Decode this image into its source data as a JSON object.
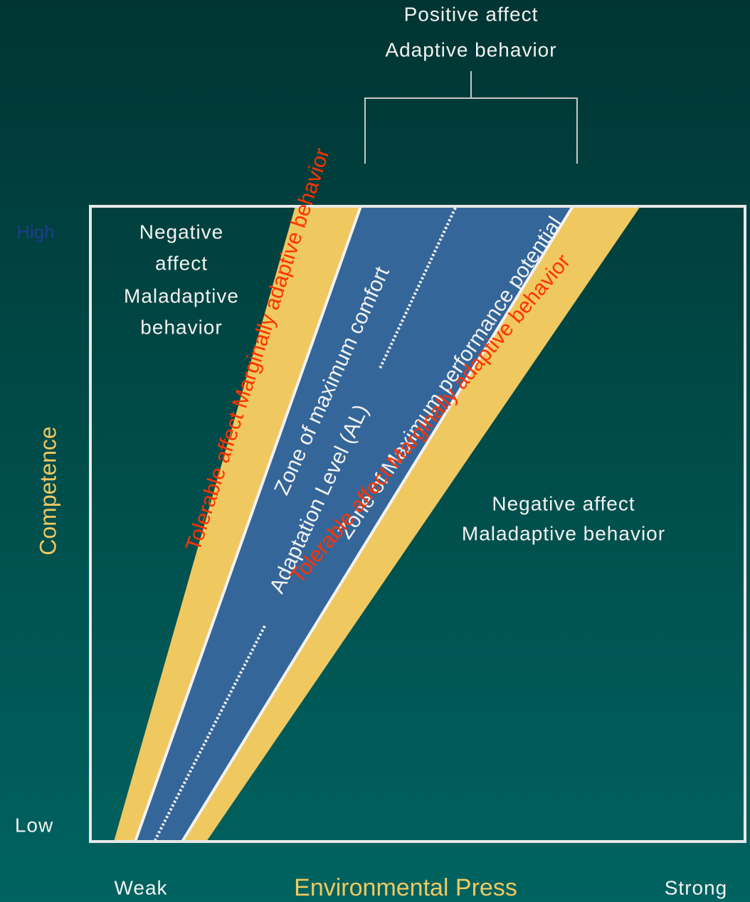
{
  "top_label": [
    "Positive affect",
    "Adaptive behavior"
  ],
  "regions": {
    "upper_left": [
      "Negative",
      "affect",
      "Maladaptive",
      "behavior"
    ],
    "lower_right": [
      "Negative affect",
      "Maladaptive behavior"
    ]
  },
  "bands": {
    "left_marginal": "Tolerable affect Marginally adaptive behavior",
    "comfort": "Zone of maximum comfort",
    "adaptation_level": "Adaptation Level (AL)",
    "performance": "Zone of Maximum performance potential",
    "right_marginal": "Tolerable affect Marginally adaptive behavior"
  },
  "y_axis": {
    "title": "Competence",
    "high": "High",
    "low": "Low"
  },
  "x_axis": {
    "title": "Environmental Press",
    "weak": "Weak",
    "strong": "Strong"
  }
}
